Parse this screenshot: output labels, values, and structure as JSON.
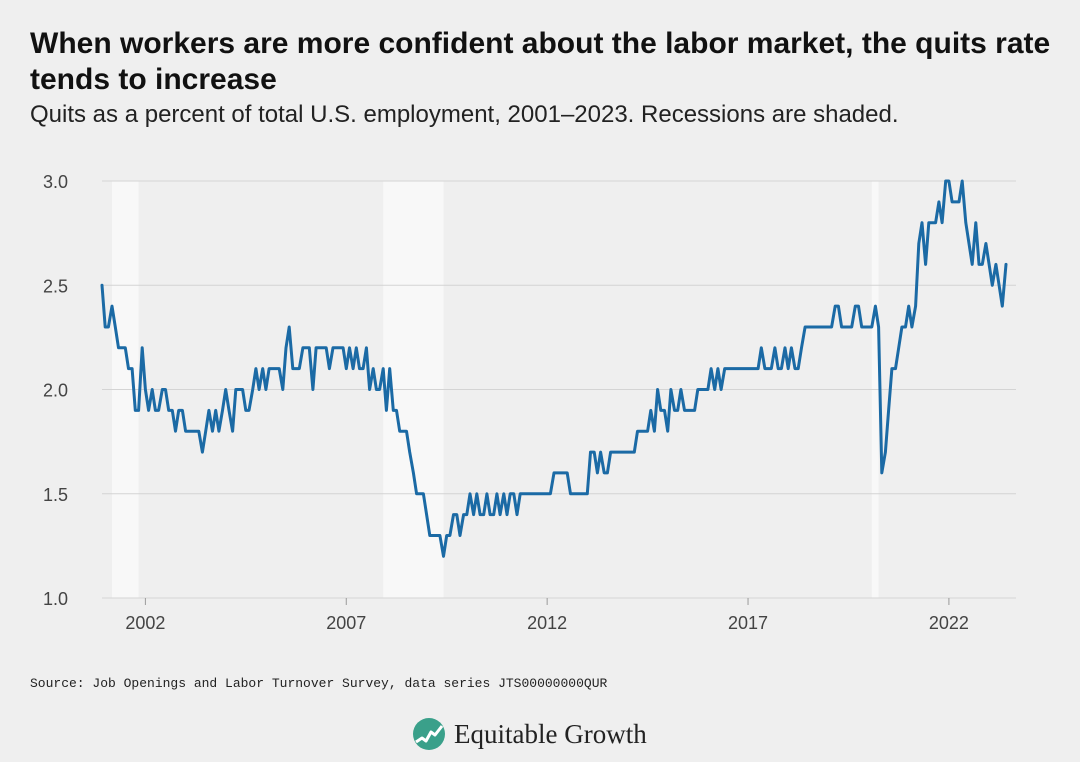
{
  "header": {
    "title": "When workers are more confident about the labor market, the quits rate tends to increase",
    "subtitle": "Quits as a percent of total U.S. employment, 2001–2023. Recessions are shaded."
  },
  "footer": {
    "source": "Source: Job Openings and Labor Turnover Survey, data series JTS00000000QUR",
    "brand": "Equitable Growth",
    "brand_color": "#3aa08a"
  },
  "colors": {
    "background": "#efefef",
    "line": "#1b6aa5",
    "grid": "#d4d4d4",
    "recession": "#f8f8f8"
  },
  "chart_data": {
    "type": "line",
    "title": "When workers are more confident about the labor market, the quits rate tends to increase",
    "subtitle": "Quits as a percent of total U.S. employment, 2001–2023. Recessions are shaded.",
    "xlabel": "",
    "ylabel": "",
    "xlim": [
      2000.92,
      2023.67
    ],
    "ylim": [
      1.0,
      3.0
    ],
    "y_ticks": [
      "1.0",
      "1.5",
      "2.0",
      "2.5",
      "3.0"
    ],
    "x_ticks": [
      "2002",
      "2007",
      "2012",
      "2017",
      "2022"
    ],
    "grid": "horizontal",
    "legend": "none",
    "recessions": [
      [
        2001.17,
        2001.83
      ],
      [
        2007.92,
        2009.42
      ],
      [
        2020.08,
        2020.25
      ]
    ],
    "series": [
      {
        "values": [
          [
            2000.92,
            2.5
          ],
          [
            2001.0,
            2.3
          ],
          [
            2001.08,
            2.3
          ],
          [
            2001.17,
            2.4
          ],
          [
            2001.25,
            2.3
          ],
          [
            2001.33,
            2.2
          ],
          [
            2001.42,
            2.2
          ],
          [
            2001.5,
            2.2
          ],
          [
            2001.58,
            2.1
          ],
          [
            2001.67,
            2.1
          ],
          [
            2001.75,
            1.9
          ],
          [
            2001.83,
            1.9
          ],
          [
            2001.92,
            2.2
          ],
          [
            2002.0,
            2.0
          ],
          [
            2002.08,
            1.9
          ],
          [
            2002.17,
            2.0
          ],
          [
            2002.25,
            1.9
          ],
          [
            2002.33,
            1.9
          ],
          [
            2002.42,
            2.0
          ],
          [
            2002.5,
            2.0
          ],
          [
            2002.58,
            1.9
          ],
          [
            2002.67,
            1.9
          ],
          [
            2002.75,
            1.8
          ],
          [
            2002.83,
            1.9
          ],
          [
            2002.92,
            1.9
          ],
          [
            2003.0,
            1.8
          ],
          [
            2003.08,
            1.8
          ],
          [
            2003.17,
            1.8
          ],
          [
            2003.25,
            1.8
          ],
          [
            2003.33,
            1.8
          ],
          [
            2003.42,
            1.7
          ],
          [
            2003.5,
            1.8
          ],
          [
            2003.58,
            1.9
          ],
          [
            2003.67,
            1.8
          ],
          [
            2003.75,
            1.9
          ],
          [
            2003.83,
            1.8
          ],
          [
            2003.92,
            1.9
          ],
          [
            2004.0,
            2.0
          ],
          [
            2004.08,
            1.9
          ],
          [
            2004.17,
            1.8
          ],
          [
            2004.25,
            2.0
          ],
          [
            2004.33,
            2.0
          ],
          [
            2004.42,
            2.0
          ],
          [
            2004.5,
            1.9
          ],
          [
            2004.58,
            1.9
          ],
          [
            2004.67,
            2.0
          ],
          [
            2004.75,
            2.1
          ],
          [
            2004.83,
            2.0
          ],
          [
            2004.92,
            2.1
          ],
          [
            2005.0,
            2.0
          ],
          [
            2005.08,
            2.1
          ],
          [
            2005.17,
            2.1
          ],
          [
            2005.25,
            2.1
          ],
          [
            2005.33,
            2.1
          ],
          [
            2005.42,
            2.0
          ],
          [
            2005.5,
            2.2
          ],
          [
            2005.58,
            2.3
          ],
          [
            2005.67,
            2.1
          ],
          [
            2005.75,
            2.1
          ],
          [
            2005.83,
            2.1
          ],
          [
            2005.92,
            2.2
          ],
          [
            2006.0,
            2.2
          ],
          [
            2006.08,
            2.2
          ],
          [
            2006.17,
            2.0
          ],
          [
            2006.25,
            2.2
          ],
          [
            2006.33,
            2.2
          ],
          [
            2006.42,
            2.2
          ],
          [
            2006.5,
            2.2
          ],
          [
            2006.58,
            2.1
          ],
          [
            2006.67,
            2.2
          ],
          [
            2006.75,
            2.2
          ],
          [
            2006.83,
            2.2
          ],
          [
            2006.92,
            2.2
          ],
          [
            2007.0,
            2.1
          ],
          [
            2007.08,
            2.2
          ],
          [
            2007.17,
            2.1
          ],
          [
            2007.25,
            2.2
          ],
          [
            2007.33,
            2.1
          ],
          [
            2007.42,
            2.1
          ],
          [
            2007.5,
            2.2
          ],
          [
            2007.58,
            2.0
          ],
          [
            2007.67,
            2.1
          ],
          [
            2007.75,
            2.0
          ],
          [
            2007.83,
            2.0
          ],
          [
            2007.92,
            2.1
          ],
          [
            2008.0,
            1.9
          ],
          [
            2008.08,
            2.1
          ],
          [
            2008.17,
            1.9
          ],
          [
            2008.25,
            1.9
          ],
          [
            2008.33,
            1.8
          ],
          [
            2008.42,
            1.8
          ],
          [
            2008.5,
            1.8
          ],
          [
            2008.58,
            1.7
          ],
          [
            2008.67,
            1.6
          ],
          [
            2008.75,
            1.5
          ],
          [
            2008.83,
            1.5
          ],
          [
            2008.92,
            1.5
          ],
          [
            2009.0,
            1.4
          ],
          [
            2009.08,
            1.3
          ],
          [
            2009.17,
            1.3
          ],
          [
            2009.25,
            1.3
          ],
          [
            2009.33,
            1.3
          ],
          [
            2009.42,
            1.2
          ],
          [
            2009.5,
            1.3
          ],
          [
            2009.58,
            1.3
          ],
          [
            2009.67,
            1.4
          ],
          [
            2009.75,
            1.4
          ],
          [
            2009.83,
            1.3
          ],
          [
            2009.92,
            1.4
          ],
          [
            2010.0,
            1.4
          ],
          [
            2010.08,
            1.5
          ],
          [
            2010.17,
            1.4
          ],
          [
            2010.25,
            1.5
          ],
          [
            2010.33,
            1.4
          ],
          [
            2010.42,
            1.4
          ],
          [
            2010.5,
            1.5
          ],
          [
            2010.58,
            1.4
          ],
          [
            2010.67,
            1.4
          ],
          [
            2010.75,
            1.5
          ],
          [
            2010.83,
            1.4
          ],
          [
            2010.92,
            1.5
          ],
          [
            2011.0,
            1.4
          ],
          [
            2011.08,
            1.5
          ],
          [
            2011.17,
            1.5
          ],
          [
            2011.25,
            1.4
          ],
          [
            2011.33,
            1.5
          ],
          [
            2011.42,
            1.5
          ],
          [
            2011.5,
            1.5
          ],
          [
            2011.58,
            1.5
          ],
          [
            2011.67,
            1.5
          ],
          [
            2011.75,
            1.5
          ],
          [
            2011.83,
            1.5
          ],
          [
            2011.92,
            1.5
          ],
          [
            2012.0,
            1.5
          ],
          [
            2012.08,
            1.5
          ],
          [
            2012.17,
            1.6
          ],
          [
            2012.25,
            1.6
          ],
          [
            2012.33,
            1.6
          ],
          [
            2012.42,
            1.6
          ],
          [
            2012.5,
            1.6
          ],
          [
            2012.58,
            1.5
          ],
          [
            2012.67,
            1.5
          ],
          [
            2012.75,
            1.5
          ],
          [
            2012.83,
            1.5
          ],
          [
            2012.92,
            1.5
          ],
          [
            2013.0,
            1.5
          ],
          [
            2013.08,
            1.7
          ],
          [
            2013.17,
            1.7
          ],
          [
            2013.25,
            1.6
          ],
          [
            2013.33,
            1.7
          ],
          [
            2013.42,
            1.6
          ],
          [
            2013.5,
            1.6
          ],
          [
            2013.58,
            1.7
          ],
          [
            2013.67,
            1.7
          ],
          [
            2013.75,
            1.7
          ],
          [
            2013.83,
            1.7
          ],
          [
            2013.92,
            1.7
          ],
          [
            2014.0,
            1.7
          ],
          [
            2014.08,
            1.7
          ],
          [
            2014.17,
            1.7
          ],
          [
            2014.25,
            1.8
          ],
          [
            2014.33,
            1.8
          ],
          [
            2014.42,
            1.8
          ],
          [
            2014.5,
            1.8
          ],
          [
            2014.58,
            1.9
          ],
          [
            2014.67,
            1.8
          ],
          [
            2014.75,
            2.0
          ],
          [
            2014.83,
            1.9
          ],
          [
            2014.92,
            1.9
          ],
          [
            2015.0,
            1.8
          ],
          [
            2015.08,
            2.0
          ],
          [
            2015.17,
            1.9
          ],
          [
            2015.25,
            1.9
          ],
          [
            2015.33,
            2.0
          ],
          [
            2015.42,
            1.9
          ],
          [
            2015.5,
            1.9
          ],
          [
            2015.58,
            1.9
          ],
          [
            2015.67,
            1.9
          ],
          [
            2015.75,
            2.0
          ],
          [
            2015.83,
            2.0
          ],
          [
            2015.92,
            2.0
          ],
          [
            2016.0,
            2.0
          ],
          [
            2016.08,
            2.1
          ],
          [
            2016.17,
            2.0
          ],
          [
            2016.25,
            2.1
          ],
          [
            2016.33,
            2.0
          ],
          [
            2016.42,
            2.1
          ],
          [
            2016.5,
            2.1
          ],
          [
            2016.58,
            2.1
          ],
          [
            2016.67,
            2.1
          ],
          [
            2016.75,
            2.1
          ],
          [
            2016.83,
            2.1
          ],
          [
            2016.92,
            2.1
          ],
          [
            2017.0,
            2.1
          ],
          [
            2017.08,
            2.1
          ],
          [
            2017.17,
            2.1
          ],
          [
            2017.25,
            2.1
          ],
          [
            2017.33,
            2.2
          ],
          [
            2017.42,
            2.1
          ],
          [
            2017.5,
            2.1
          ],
          [
            2017.58,
            2.1
          ],
          [
            2017.67,
            2.2
          ],
          [
            2017.75,
            2.1
          ],
          [
            2017.83,
            2.1
          ],
          [
            2017.92,
            2.2
          ],
          [
            2018.0,
            2.1
          ],
          [
            2018.08,
            2.2
          ],
          [
            2018.17,
            2.1
          ],
          [
            2018.25,
            2.1
          ],
          [
            2018.33,
            2.2
          ],
          [
            2018.42,
            2.3
          ],
          [
            2018.5,
            2.3
          ],
          [
            2018.58,
            2.3
          ],
          [
            2018.67,
            2.3
          ],
          [
            2018.75,
            2.3
          ],
          [
            2018.83,
            2.3
          ],
          [
            2018.92,
            2.3
          ],
          [
            2019.0,
            2.3
          ],
          [
            2019.08,
            2.3
          ],
          [
            2019.17,
            2.4
          ],
          [
            2019.25,
            2.4
          ],
          [
            2019.33,
            2.3
          ],
          [
            2019.42,
            2.3
          ],
          [
            2019.5,
            2.3
          ],
          [
            2019.58,
            2.3
          ],
          [
            2019.67,
            2.4
          ],
          [
            2019.75,
            2.4
          ],
          [
            2019.83,
            2.3
          ],
          [
            2019.92,
            2.3
          ],
          [
            2020.0,
            2.3
          ],
          [
            2020.08,
            2.3
          ],
          [
            2020.17,
            2.4
          ],
          [
            2020.25,
            2.3
          ],
          [
            2020.33,
            1.6
          ],
          [
            2020.42,
            1.7
          ],
          [
            2020.5,
            1.9
          ],
          [
            2020.58,
            2.1
          ],
          [
            2020.67,
            2.1
          ],
          [
            2020.75,
            2.2
          ],
          [
            2020.83,
            2.3
          ],
          [
            2020.92,
            2.3
          ],
          [
            2021.0,
            2.4
          ],
          [
            2021.08,
            2.3
          ],
          [
            2021.17,
            2.4
          ],
          [
            2021.25,
            2.7
          ],
          [
            2021.33,
            2.8
          ],
          [
            2021.42,
            2.6
          ],
          [
            2021.5,
            2.8
          ],
          [
            2021.58,
            2.8
          ],
          [
            2021.67,
            2.8
          ],
          [
            2021.75,
            2.9
          ],
          [
            2021.83,
            2.8
          ],
          [
            2021.92,
            3.0
          ],
          [
            2022.0,
            3.0
          ],
          [
            2022.08,
            2.9
          ],
          [
            2022.17,
            2.9
          ],
          [
            2022.25,
            2.9
          ],
          [
            2022.33,
            3.0
          ],
          [
            2022.42,
            2.8
          ],
          [
            2022.5,
            2.7
          ],
          [
            2022.58,
            2.6
          ],
          [
            2022.67,
            2.8
          ],
          [
            2022.75,
            2.6
          ],
          [
            2022.83,
            2.6
          ],
          [
            2022.92,
            2.7
          ],
          [
            2023.0,
            2.6
          ],
          [
            2023.08,
            2.5
          ],
          [
            2023.17,
            2.6
          ],
          [
            2023.25,
            2.5
          ],
          [
            2023.33,
            2.4
          ],
          [
            2023.42,
            2.6
          ]
        ]
      }
    ]
  }
}
